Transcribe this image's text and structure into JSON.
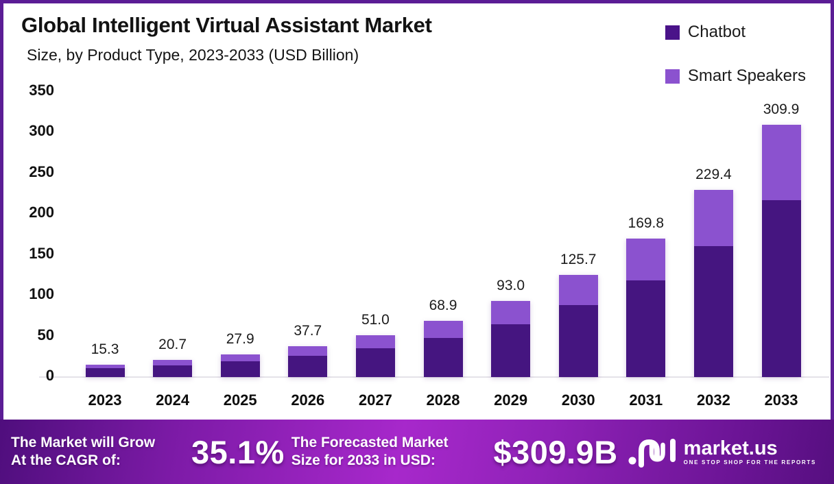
{
  "header": {
    "title": "Global Intelligent Virtual Assistant Market",
    "subtitle": "Size, by Product Type, 2023-2033 (USD Billion)"
  },
  "legend": [
    {
      "label": "Chatbot",
      "color": "#4a1389"
    },
    {
      "label": "Smart Speakers",
      "color": "#8b52cf"
    }
  ],
  "chart_data": {
    "type": "bar",
    "stacked": true,
    "title": "Global Intelligent Virtual Assistant Market Size, by Product Type, 2023-2033 (USD Billion)",
    "xlabel": "",
    "ylabel": "",
    "ylim": [
      0,
      350
    ],
    "yticks": [
      0,
      50,
      100,
      150,
      200,
      250,
      300,
      350
    ],
    "grid": false,
    "legend_position": "top-right",
    "categories": [
      "2023",
      "2024",
      "2025",
      "2026",
      "2027",
      "2028",
      "2029",
      "2030",
      "2031",
      "2032",
      "2033"
    ],
    "series": [
      {
        "name": "Chatbot",
        "color": "#451580",
        "values": [
          10.7,
          14.5,
          19.5,
          26.4,
          35.7,
          48.2,
          65.1,
          88.0,
          118.9,
          160.6,
          217.0
        ]
      },
      {
        "name": "Smart Speakers",
        "color": "#8b52cf",
        "values": [
          4.6,
          6.2,
          8.4,
          11.3,
          15.3,
          20.7,
          27.9,
          37.7,
          50.9,
          68.8,
          92.9
        ]
      }
    ],
    "totals": [
      15.3,
      20.7,
      27.9,
      37.7,
      51.0,
      68.9,
      93.0,
      125.7,
      169.8,
      229.4,
      309.9
    ],
    "total_labels": [
      "15.3",
      "20.7",
      "27.9",
      "37.7",
      "51.0",
      "68.9",
      "93.0",
      "125.7",
      "169.8",
      "229.4",
      "309.9"
    ]
  },
  "footer": {
    "cagr_caption_line1": "The Market will Grow",
    "cagr_caption_line2": "At the CAGR of:",
    "cagr_value": "35.1%",
    "forecast_caption_line1": "The Forecasted Market",
    "forecast_caption_line2": "Size for 2033 in USD:",
    "forecast_value": "$309.9B",
    "logo_name": "market.us",
    "logo_tagline": "ONE STOP SHOP FOR THE REPORTS"
  }
}
